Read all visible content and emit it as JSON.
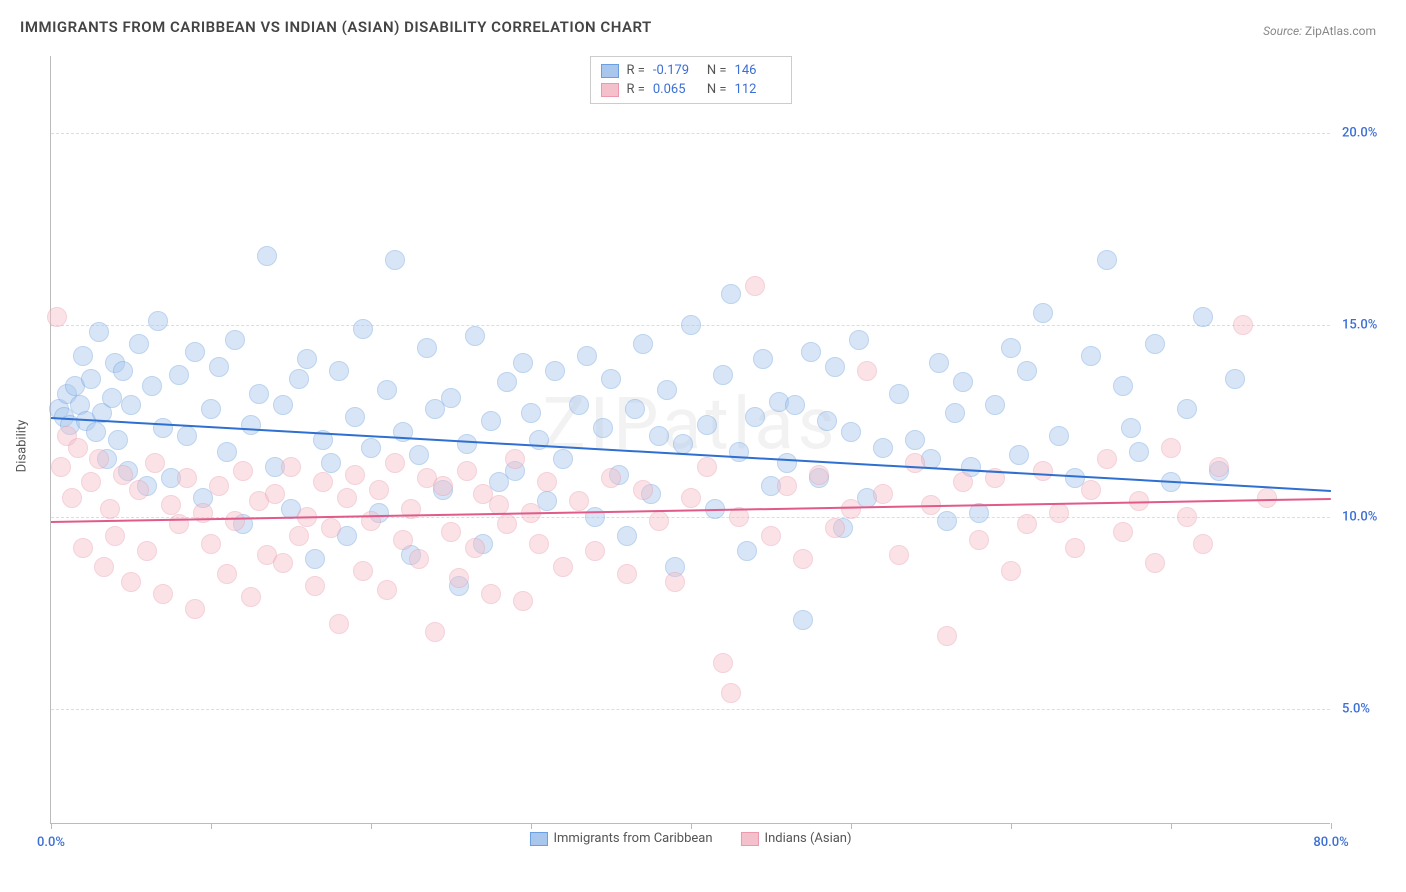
{
  "title": "IMMIGRANTS FROM CARIBBEAN VS INDIAN (ASIAN) DISABILITY CORRELATION CHART",
  "source_label": "Source:",
  "source_value": "ZipAtlas.com",
  "watermark": "ZIPatlas",
  "y_axis_title": "Disability",
  "chart": {
    "type": "scatter",
    "xlim": [
      0,
      80
    ],
    "ylim": [
      2,
      22
    ],
    "y_ticks": [
      5,
      10,
      15,
      20
    ],
    "y_tick_labels": [
      "5.0%",
      "10.0%",
      "15.0%",
      "20.0%"
    ],
    "y_tick_color": "#3b6fd6",
    "x_ticks": [
      0,
      10,
      20,
      30,
      40,
      50,
      60,
      70,
      80
    ],
    "x_labels_shown": {
      "0": "0.0%",
      "80": "80.0%"
    },
    "x_tick_color": "#3b6fd6",
    "grid_color": "#dddddd",
    "axis_color": "#bbbbbb",
    "background_color": "#ffffff",
    "marker_radius": 10,
    "marker_opacity": 0.45,
    "series": [
      {
        "name": "Immigrants from Caribbean",
        "color_fill": "#a9c7ec",
        "color_stroke": "#6b9fe0",
        "trend_color": "#2f6fd0",
        "R": "-0.179",
        "N": "146",
        "trend": {
          "x1": 0,
          "y1": 12.6,
          "x2": 80,
          "y2": 10.7
        },
        "points": [
          [
            0.5,
            12.8
          ],
          [
            0.8,
            12.6
          ],
          [
            1,
            13.2
          ],
          [
            1.2,
            12.4
          ],
          [
            1.5,
            13.4
          ],
          [
            1.8,
            12.9
          ],
          [
            2,
            14.2
          ],
          [
            2.2,
            12.5
          ],
          [
            2.5,
            13.6
          ],
          [
            2.8,
            12.2
          ],
          [
            3,
            14.8
          ],
          [
            3.2,
            12.7
          ],
          [
            3.5,
            11.5
          ],
          [
            3.8,
            13.1
          ],
          [
            4,
            14.0
          ],
          [
            4.2,
            12.0
          ],
          [
            4.5,
            13.8
          ],
          [
            4.8,
            11.2
          ],
          [
            5,
            12.9
          ],
          [
            5.5,
            14.5
          ],
          [
            6,
            10.8
          ],
          [
            6.3,
            13.4
          ],
          [
            6.7,
            15.1
          ],
          [
            7,
            12.3
          ],
          [
            7.5,
            11.0
          ],
          [
            8,
            13.7
          ],
          [
            8.5,
            12.1
          ],
          [
            9,
            14.3
          ],
          [
            9.5,
            10.5
          ],
          [
            10,
            12.8
          ],
          [
            10.5,
            13.9
          ],
          [
            11,
            11.7
          ],
          [
            11.5,
            14.6
          ],
          [
            12,
            9.8
          ],
          [
            12.5,
            12.4
          ],
          [
            13,
            13.2
          ],
          [
            13.5,
            16.8
          ],
          [
            14,
            11.3
          ],
          [
            14.5,
            12.9
          ],
          [
            15,
            10.2
          ],
          [
            15.5,
            13.6
          ],
          [
            16,
            14.1
          ],
          [
            16.5,
            8.9
          ],
          [
            17,
            12.0
          ],
          [
            17.5,
            11.4
          ],
          [
            18,
            13.8
          ],
          [
            18.5,
            9.5
          ],
          [
            19,
            12.6
          ],
          [
            19.5,
            14.9
          ],
          [
            20,
            11.8
          ],
          [
            20.5,
            10.1
          ],
          [
            21,
            13.3
          ],
          [
            21.5,
            16.7
          ],
          [
            22,
            12.2
          ],
          [
            22.5,
            9.0
          ],
          [
            23,
            11.6
          ],
          [
            23.5,
            14.4
          ],
          [
            24,
            12.8
          ],
          [
            24.5,
            10.7
          ],
          [
            25,
            13.1
          ],
          [
            25.5,
            8.2
          ],
          [
            26,
            11.9
          ],
          [
            26.5,
            14.7
          ],
          [
            27,
            9.3
          ],
          [
            27.5,
            12.5
          ],
          [
            28,
            10.9
          ],
          [
            28.5,
            13.5
          ],
          [
            29,
            11.2
          ],
          [
            29.5,
            14.0
          ],
          [
            30,
            12.7
          ],
          [
            30.5,
            12.0
          ],
          [
            31,
            10.4
          ],
          [
            31.5,
            13.8
          ],
          [
            32,
            11.5
          ],
          [
            33,
            12.9
          ],
          [
            33.5,
            14.2
          ],
          [
            34,
            10.0
          ],
          [
            34.5,
            12.3
          ],
          [
            35,
            13.6
          ],
          [
            35.5,
            11.1
          ],
          [
            36,
            9.5
          ],
          [
            36.5,
            12.8
          ],
          [
            37,
            14.5
          ],
          [
            37.5,
            10.6
          ],
          [
            38,
            12.1
          ],
          [
            38.5,
            13.3
          ],
          [
            39,
            8.7
          ],
          [
            39.5,
            11.9
          ],
          [
            40,
            15.0
          ],
          [
            41,
            12.4
          ],
          [
            41.5,
            10.2
          ],
          [
            42,
            13.7
          ],
          [
            42.5,
            15.8
          ],
          [
            43,
            11.7
          ],
          [
            43.5,
            9.1
          ],
          [
            44,
            12.6
          ],
          [
            44.5,
            14.1
          ],
          [
            45,
            10.8
          ],
          [
            45.5,
            13.0
          ],
          [
            46,
            11.4
          ],
          [
            46.5,
            12.9
          ],
          [
            47,
            7.3
          ],
          [
            47.5,
            14.3
          ],
          [
            48,
            11.0
          ],
          [
            48.5,
            12.5
          ],
          [
            49,
            13.9
          ],
          [
            49.5,
            9.7
          ],
          [
            50,
            12.2
          ],
          [
            50.5,
            14.6
          ],
          [
            51,
            10.5
          ],
          [
            52,
            11.8
          ],
          [
            53,
            13.2
          ],
          [
            54,
            12.0
          ],
          [
            55,
            11.5
          ],
          [
            55.5,
            14.0
          ],
          [
            56,
            9.9
          ],
          [
            56.5,
            12.7
          ],
          [
            57,
            13.5
          ],
          [
            57.5,
            11.3
          ],
          [
            58,
            10.1
          ],
          [
            59,
            12.9
          ],
          [
            60,
            14.4
          ],
          [
            60.5,
            11.6
          ],
          [
            61,
            13.8
          ],
          [
            62,
            15.3
          ],
          [
            63,
            12.1
          ],
          [
            64,
            11.0
          ],
          [
            65,
            14.2
          ],
          [
            66,
            16.7
          ],
          [
            67,
            13.4
          ],
          [
            67.5,
            12.3
          ],
          [
            68,
            11.7
          ],
          [
            69,
            14.5
          ],
          [
            70,
            10.9
          ],
          [
            71,
            12.8
          ],
          [
            72,
            15.2
          ],
          [
            73,
            11.2
          ],
          [
            74,
            13.6
          ]
        ]
      },
      {
        "name": "Indians (Asian)",
        "color_fill": "#f4c0cb",
        "color_stroke": "#eb9aad",
        "trend_color": "#e05a8a",
        "R": "0.065",
        "N": "112",
        "trend": {
          "x1": 0,
          "y1": 9.9,
          "x2": 80,
          "y2": 10.5
        },
        "points": [
          [
            0.4,
            15.2
          ],
          [
            0.6,
            11.3
          ],
          [
            1,
            12.1
          ],
          [
            1.3,
            10.5
          ],
          [
            1.7,
            11.8
          ],
          [
            2,
            9.2
          ],
          [
            2.5,
            10.9
          ],
          [
            3,
            11.5
          ],
          [
            3.3,
            8.7
          ],
          [
            3.7,
            10.2
          ],
          [
            4,
            9.5
          ],
          [
            4.5,
            11.1
          ],
          [
            5,
            8.3
          ],
          [
            5.5,
            10.7
          ],
          [
            6,
            9.1
          ],
          [
            6.5,
            11.4
          ],
          [
            7,
            8.0
          ],
          [
            7.5,
            10.3
          ],
          [
            8,
            9.8
          ],
          [
            8.5,
            11.0
          ],
          [
            9,
            7.6
          ],
          [
            9.5,
            10.1
          ],
          [
            10,
            9.3
          ],
          [
            10.5,
            10.8
          ],
          [
            11,
            8.5
          ],
          [
            11.5,
            9.9
          ],
          [
            12,
            11.2
          ],
          [
            12.5,
            7.9
          ],
          [
            13,
            10.4
          ],
          [
            13.5,
            9.0
          ],
          [
            14,
            10.6
          ],
          [
            14.5,
            8.8
          ],
          [
            15,
            11.3
          ],
          [
            15.5,
            9.5
          ],
          [
            16,
            10.0
          ],
          [
            16.5,
            8.2
          ],
          [
            17,
            10.9
          ],
          [
            17.5,
            9.7
          ],
          [
            18,
            7.2
          ],
          [
            18.5,
            10.5
          ],
          [
            19,
            11.1
          ],
          [
            19.5,
            8.6
          ],
          [
            20,
            9.9
          ],
          [
            20.5,
            10.7
          ],
          [
            21,
            8.1
          ],
          [
            21.5,
            11.4
          ],
          [
            22,
            9.4
          ],
          [
            22.5,
            10.2
          ],
          [
            23,
            8.9
          ],
          [
            23.5,
            11.0
          ],
          [
            24,
            7.0
          ],
          [
            24.5,
            10.8
          ],
          [
            25,
            9.6
          ],
          [
            25.5,
            8.4
          ],
          [
            26,
            11.2
          ],
          [
            26.5,
            9.2
          ],
          [
            27,
            10.6
          ],
          [
            27.5,
            8.0
          ],
          [
            28,
            10.3
          ],
          [
            28.5,
            9.8
          ],
          [
            29,
            11.5
          ],
          [
            29.5,
            7.8
          ],
          [
            30,
            10.1
          ],
          [
            30.5,
            9.3
          ],
          [
            31,
            10.9
          ],
          [
            32,
            8.7
          ],
          [
            33,
            10.4
          ],
          [
            34,
            9.1
          ],
          [
            35,
            11.0
          ],
          [
            36,
            8.5
          ],
          [
            37,
            10.7
          ],
          [
            38,
            9.9
          ],
          [
            39,
            8.3
          ],
          [
            40,
            10.5
          ],
          [
            41,
            11.3
          ],
          [
            42,
            6.2
          ],
          [
            42.5,
            5.4
          ],
          [
            43,
            10.0
          ],
          [
            44,
            16.0
          ],
          [
            45,
            9.5
          ],
          [
            46,
            10.8
          ],
          [
            47,
            8.9
          ],
          [
            48,
            11.1
          ],
          [
            49,
            9.7
          ],
          [
            50,
            10.2
          ],
          [
            51,
            13.8
          ],
          [
            52,
            10.6
          ],
          [
            53,
            9.0
          ],
          [
            54,
            11.4
          ],
          [
            55,
            10.3
          ],
          [
            56,
            6.9
          ],
          [
            57,
            10.9
          ],
          [
            58,
            9.4
          ],
          [
            59,
            11.0
          ],
          [
            60,
            8.6
          ],
          [
            61,
            9.8
          ],
          [
            62,
            11.2
          ],
          [
            63,
            10.1
          ],
          [
            64,
            9.2
          ],
          [
            65,
            10.7
          ],
          [
            66,
            11.5
          ],
          [
            67,
            9.6
          ],
          [
            68,
            10.4
          ],
          [
            69,
            8.8
          ],
          [
            70,
            11.8
          ],
          [
            71,
            10.0
          ],
          [
            72,
            9.3
          ],
          [
            73,
            11.3
          ],
          [
            74.5,
            15.0
          ],
          [
            76,
            10.5
          ]
        ]
      }
    ]
  },
  "bottom_legend": [
    {
      "label": "Immigrants from Caribbean",
      "fill": "#a9c7ec",
      "stroke": "#6b9fe0"
    },
    {
      "label": "Indians (Asian)",
      "fill": "#f4c0cb",
      "stroke": "#eb9aad"
    }
  ]
}
